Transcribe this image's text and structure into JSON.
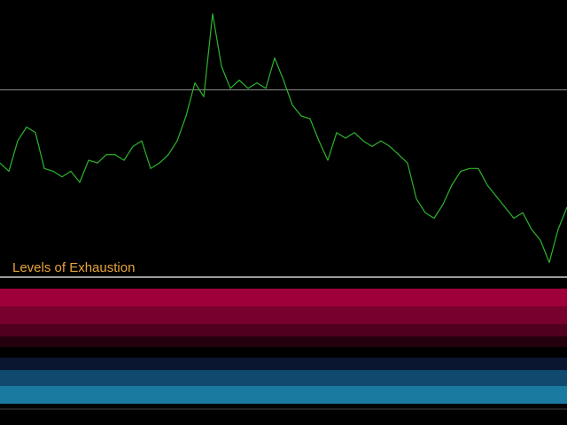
{
  "chart_data": {
    "type": "line",
    "title": "Levels of Exhaustion",
    "title_color": "#e8a33a",
    "color": "#2db52d",
    "values": [
      41,
      38,
      49,
      54,
      52,
      39,
      38,
      36,
      38,
      34,
      42,
      41,
      44,
      44,
      42,
      47,
      49,
      39,
      41,
      44,
      49,
      58,
      70,
      65,
      95,
      76,
      68,
      71,
      68,
      70,
      68,
      79,
      71,
      62,
      58,
      57,
      49,
      42,
      52,
      50,
      52,
      49,
      47,
      49,
      47,
      44,
      41,
      28,
      23,
      21,
      26,
      33,
      38,
      39,
      39,
      33,
      29,
      25,
      21,
      23,
      17,
      13,
      5,
      17,
      25
    ],
    "ylim": [
      0,
      100
    ]
  }
}
